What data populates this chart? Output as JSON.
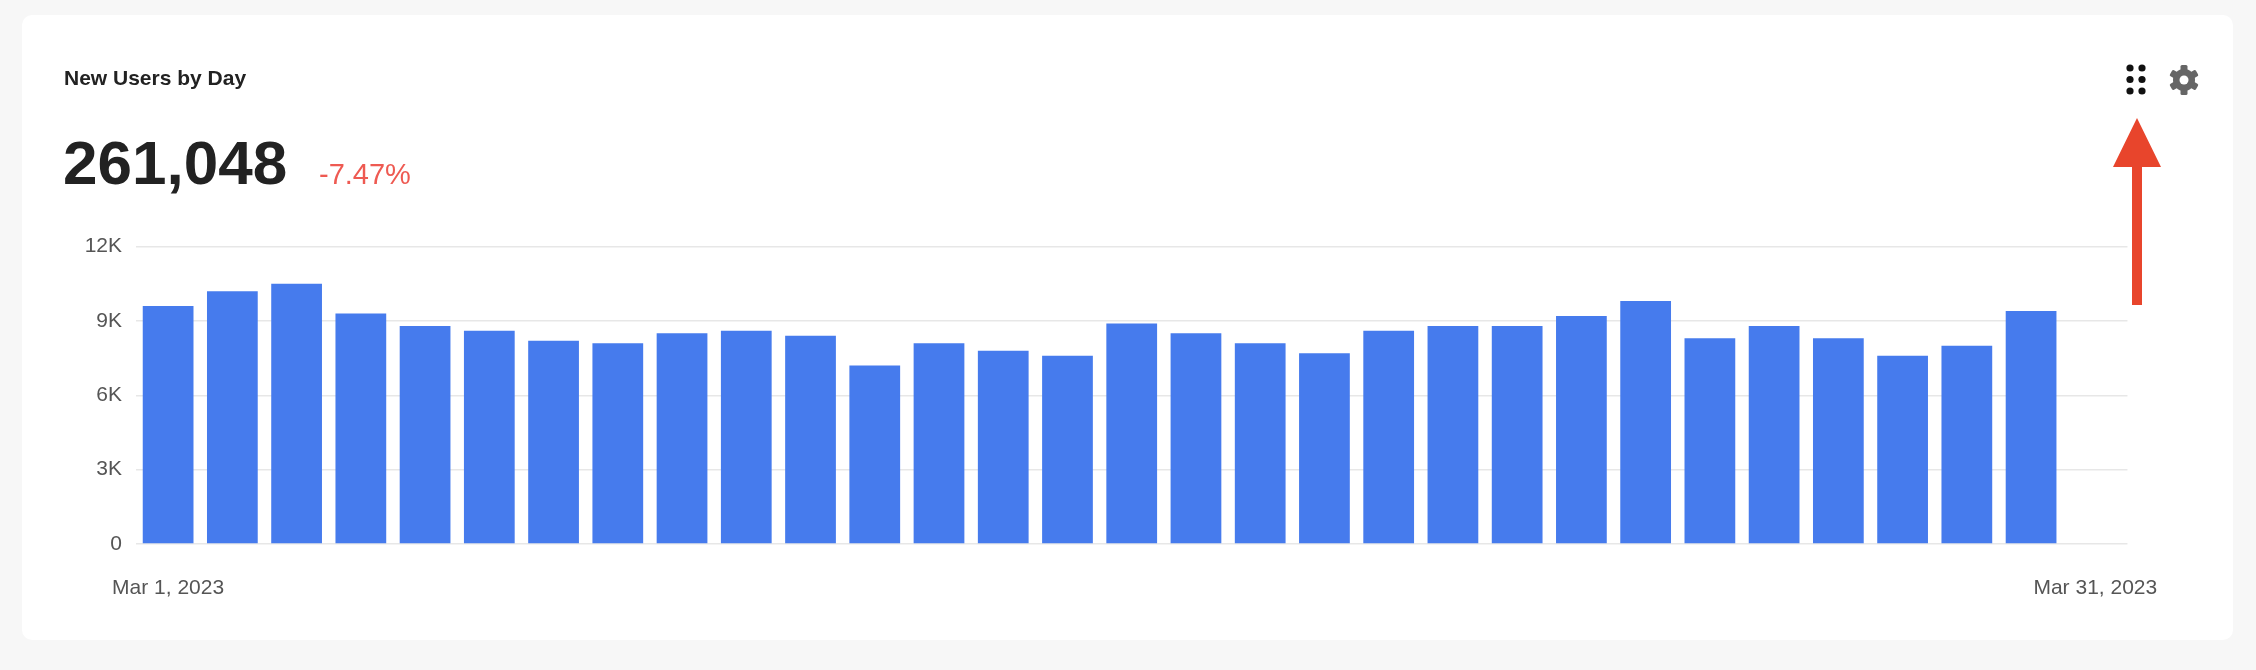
{
  "chart_data": {
    "type": "bar",
    "title": "New Users by Day",
    "annotations": [
      "261,048",
      "-7.47%"
    ],
    "categories": [
      "Mar 1, 2023",
      null,
      null,
      null,
      null,
      null,
      null,
      null,
      null,
      null,
      null,
      null,
      null,
      null,
      null,
      null,
      null,
      null,
      null,
      null,
      null,
      null,
      null,
      null,
      null,
      null,
      null,
      null,
      null,
      null,
      "Mar 31, 2023"
    ],
    "values": [
      9600,
      10200,
      10500,
      9300,
      8800,
      8600,
      8200,
      8100,
      8500,
      8600,
      8400,
      7200,
      8100,
      7800,
      7600,
      8900,
      8500,
      8100,
      7700,
      8600,
      8800,
      8800,
      9200,
      9800,
      8300,
      8800,
      8300,
      7600,
      8000,
      9400,
      null
    ],
    "color": "#467bed",
    "ylim": [
      0,
      12000
    ],
    "yticks": [
      0,
      {
        "value": 3000,
        "label": "3K"
      },
      {
        "value": 6000,
        "label": "6K"
      },
      {
        "value": 9000,
        "label": "9K"
      },
      {
        "value": 12000,
        "label": "12K"
      }
    ],
    "grid": "y"
  }
}
